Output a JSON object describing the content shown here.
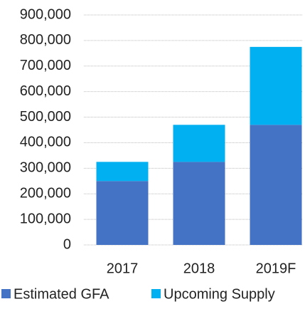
{
  "chart_data": {
    "type": "stacked_bar",
    "categories": [
      "2017",
      "2018",
      "2019F"
    ],
    "series": [
      {
        "name": "Estimated GFA",
        "color": "#4472c4",
        "values": [
          250000,
          325000,
          470000
        ]
      },
      {
        "name": "Upcoming Supply",
        "color": "#00b0f0",
        "values": [
          75000,
          145000,
          305000
        ]
      }
    ],
    "ylim": [
      0,
      900000
    ],
    "yticks": [
      0,
      {
        "value": 100000,
        "label": "100,000"
      },
      {
        "value": 200000,
        "label": "200,000"
      },
      {
        "value": 300000,
        "label": "300,000"
      },
      {
        "value": 400000,
        "label": "400,000"
      },
      {
        "value": 500000,
        "label": "500,000"
      },
      {
        "value": 600000,
        "label": "600,000"
      },
      {
        "value": 700000,
        "label": "700,000"
      },
      {
        "value": 800000,
        "label": "800,000"
      },
      {
        "value": 900000,
        "label": "900,000"
      }
    ],
    "grid": true,
    "legend": "bottom"
  }
}
